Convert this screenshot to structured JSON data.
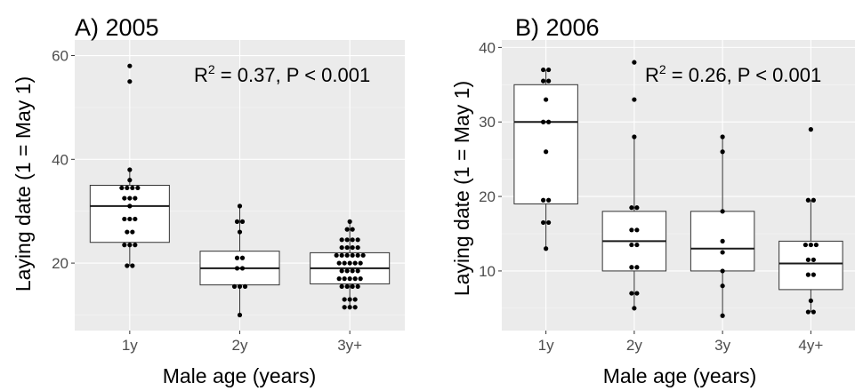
{
  "chart_data": [
    {
      "type": "box",
      "title": "A) 2005",
      "xlabel": "Male age (years)",
      "ylabel": "Laying date (1 = May 1)",
      "annotation": {
        "prefix": "R",
        "sup": "2",
        "rest": " = 0.37, P < 0.001"
      },
      "categories": [
        "1y",
        "2y",
        "3y+"
      ],
      "ylim": [
        7,
        63
      ],
      "yticks": [
        20,
        40,
        60
      ],
      "boxes": [
        {
          "q1": 24,
          "median": 31,
          "q3": 35,
          "lower": 19.5,
          "upper": 38
        },
        {
          "q1": 15.8,
          "median": 19,
          "q3": 22.3,
          "lower": 10,
          "upper": 31
        },
        {
          "q1": 16,
          "median": 19,
          "q3": 22,
          "lower": 11.5,
          "upper": 28
        }
      ],
      "points": [
        [
          58,
          55,
          38,
          36,
          34.5,
          34.5,
          34.5,
          34.5,
          32.5,
          32.5,
          32.5,
          31,
          28.5,
          28.5,
          28.5,
          26,
          26,
          23.5,
          23.5,
          23.5,
          19.5,
          19.5
        ],
        [
          31,
          28,
          28,
          26,
          21,
          21,
          19,
          19,
          15.5,
          15.5,
          15.5,
          10
        ],
        [
          28,
          26.5,
          26.5,
          24.5,
          24.5,
          24.5,
          24.5,
          23,
          23,
          23,
          23,
          21.5,
          21.5,
          21.5,
          21.5,
          21.5,
          21.5,
          20,
          20,
          20,
          20,
          20,
          18.5,
          18.5,
          18.5,
          18.5,
          17,
          17,
          17,
          17,
          17,
          15.5,
          15.5,
          15.5,
          15.5,
          13,
          13,
          13,
          11.5,
          11.5,
          11.5
        ]
      ]
    },
    {
      "type": "box",
      "title": "B) 2006",
      "xlabel": "Male age (years)",
      "ylabel": "Laying date (1 = May 1)",
      "annotation": {
        "prefix": "R",
        "sup": "2",
        "rest": " = 0.26, P < 0.001"
      },
      "categories": [
        "1y",
        "2y",
        "3y",
        "4y+"
      ],
      "ylim": [
        2,
        41
      ],
      "yticks": [
        10,
        20,
        30,
        40
      ],
      "boxes": [
        {
          "q1": 19,
          "median": 30,
          "q3": 35,
          "lower": 13,
          "upper": 37
        },
        {
          "q1": 10,
          "median": 14,
          "q3": 18,
          "lower": 5,
          "upper": 28
        },
        {
          "q1": 10,
          "median": 13,
          "q3": 18,
          "lower": 4,
          "upper": 28
        },
        {
          "q1": 7.5,
          "median": 11,
          "q3": 14,
          "lower": 4.5,
          "upper": 19.5
        }
      ],
      "points": [
        [
          37,
          37,
          35.5,
          35.5,
          33,
          30,
          30,
          26,
          19.5,
          19.5,
          16.5,
          16.5,
          13
        ],
        [
          38,
          33,
          28,
          18.5,
          18.5,
          15.5,
          15.5,
          13.5,
          13.5,
          10.5,
          10.5,
          7,
          7,
          5
        ],
        [
          28,
          26,
          18,
          14,
          12.5,
          10,
          8,
          4
        ],
        [
          29,
          19.5,
          19.5,
          13.5,
          13.5,
          13.5,
          11.5,
          11.5,
          9.5,
          9.5,
          6,
          4.5,
          4.5
        ]
      ]
    }
  ]
}
